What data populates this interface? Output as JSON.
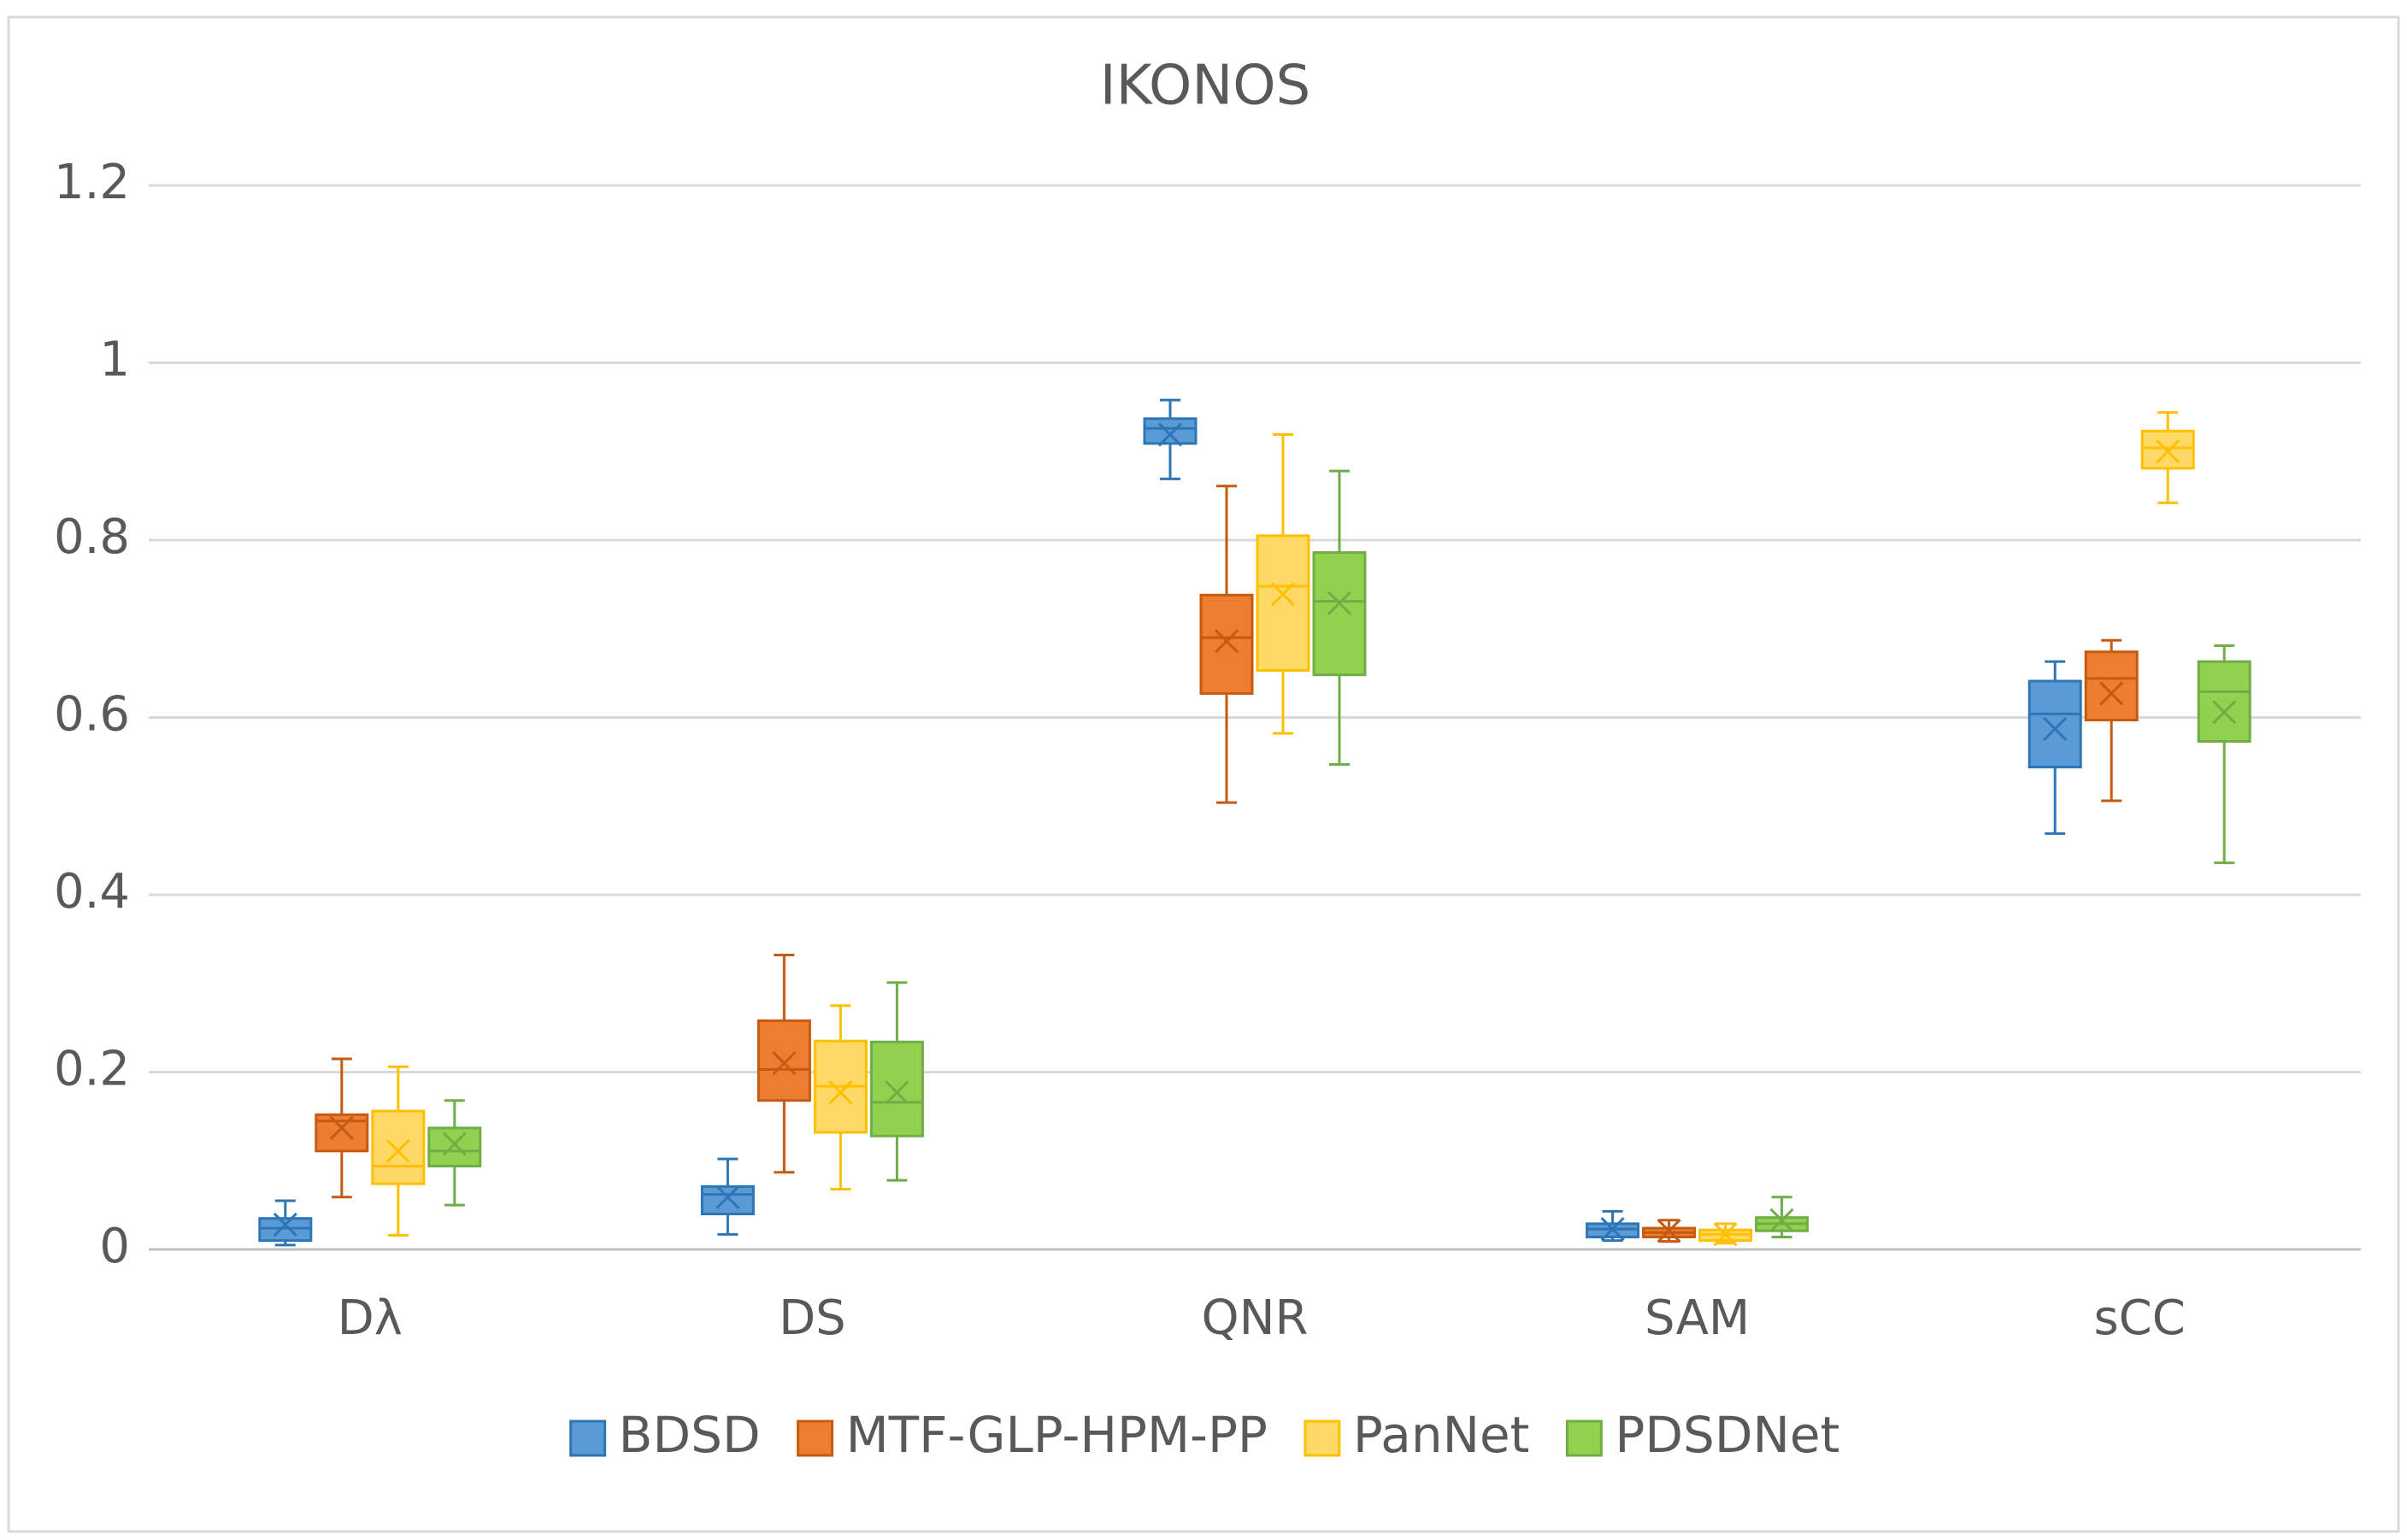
{
  "chart_data": {
    "type": "box",
    "title": "IKONOS",
    "categories": [
      "Dλ",
      "DS",
      "QNR",
      "SAM",
      "sCC"
    ],
    "series": [
      {
        "name": "BDSD",
        "color": "#5b9bd5",
        "edge_color": "#2e75b6",
        "min": [
          0.005,
          0.017,
          0.869,
          0.01,
          0.469
        ],
        "q1": [
          0.01,
          0.04,
          0.909,
          0.014,
          0.544
        ],
        "median": [
          0.024,
          0.062,
          0.926,
          0.023,
          0.604
        ],
        "q3": [
          0.035,
          0.071,
          0.937,
          0.029,
          0.641
        ],
        "max": [
          0.055,
          0.102,
          0.958,
          0.043,
          0.663
        ],
        "mean": [
          0.028,
          0.059,
          0.919,
          0.023,
          0.587
        ]
      },
      {
        "name": "MTF-GLP-HPM-PP",
        "color": "#ed7d31",
        "edge_color": "#c55a11",
        "min": [
          0.059,
          0.087,
          0.504,
          0.009,
          0.506
        ],
        "q1": [
          0.111,
          0.168,
          0.627,
          0.014,
          0.597
        ],
        "median": [
          0.145,
          0.203,
          0.69,
          0.019,
          0.644
        ],
        "q3": [
          0.152,
          0.258,
          0.738,
          0.024,
          0.674
        ],
        "max": [
          0.215,
          0.332,
          0.861,
          0.033,
          0.687
        ],
        "mean": [
          0.137,
          0.21,
          0.686,
          0.021,
          0.627
        ]
      },
      {
        "name": "PanNet",
        "color": "#ffd966",
        "edge_color": "#ffc000",
        "min": [
          0.016,
          0.068,
          0.582,
          0.007,
          0.842
        ],
        "q1": [
          0.074,
          0.132,
          0.653,
          0.01,
          0.881
        ],
        "median": [
          0.094,
          0.184,
          0.748,
          0.017,
          0.904
        ],
        "q3": [
          0.156,
          0.235,
          0.805,
          0.022,
          0.923
        ],
        "max": [
          0.206,
          0.275,
          0.919,
          0.029,
          0.944
        ],
        "mean": [
          0.111,
          0.177,
          0.739,
          0.017,
          0.9
        ]
      },
      {
        "name": "PDSDNet",
        "color": "#92d050",
        "edge_color": "#70ad47",
        "min": [
          0.05,
          0.078,
          0.547,
          0.014,
          0.436
        ],
        "q1": [
          0.094,
          0.128,
          0.648,
          0.021,
          0.573
        ],
        "median": [
          0.111,
          0.166,
          0.731,
          0.029,
          0.629
        ],
        "q3": [
          0.137,
          0.234,
          0.786,
          0.036,
          0.663
        ],
        "max": [
          0.168,
          0.301,
          0.878,
          0.059,
          0.681
        ],
        "mean": [
          0.119,
          0.177,
          0.729,
          0.033,
          0.606
        ]
      }
    ],
    "ylim": [
      0,
      1.2
    ],
    "yticks": [
      0,
      0.2,
      0.4,
      0.6,
      0.8,
      1,
      1.2
    ],
    "grid": true,
    "legend": "bottom"
  }
}
